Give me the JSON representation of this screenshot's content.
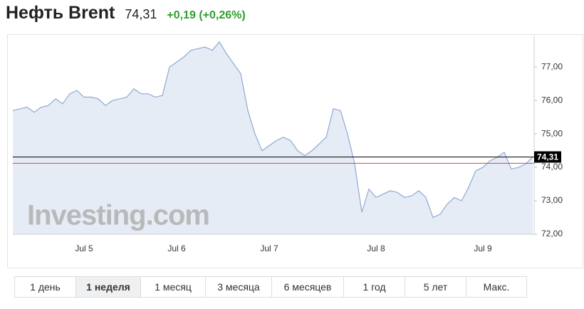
{
  "header": {
    "title": "Нефть Brent",
    "price": "74,31",
    "change": "+0,19 (+0,26%)"
  },
  "chart_data": {
    "type": "area",
    "watermark": "Investing.com",
    "categories": [
      null,
      null,
      null,
      null,
      null,
      null,
      null,
      null,
      null,
      null,
      "Jul 5",
      null,
      null,
      null,
      null,
      null,
      null,
      null,
      null,
      null,
      null,
      null,
      null,
      "Jul 6",
      null,
      null,
      null,
      null,
      null,
      null,
      null,
      null,
      null,
      null,
      null,
      null,
      "Jul 7",
      null,
      null,
      null,
      null,
      null,
      null,
      null,
      null,
      null,
      null,
      null,
      null,
      null,
      null,
      "Jul 8",
      null,
      null,
      null,
      null,
      null,
      null,
      null,
      null,
      null,
      null,
      null,
      null,
      null,
      null,
      "Jul 9",
      null,
      null,
      null,
      null,
      null,
      null,
      null
    ],
    "values": [
      75.7,
      75.75,
      75.8,
      75.65,
      75.8,
      75.85,
      76.05,
      75.9,
      76.2,
      76.3,
      76.1,
      76.1,
      76.05,
      75.85,
      76.0,
      76.05,
      76.1,
      76.35,
      76.2,
      76.2,
      76.1,
      76.15,
      77.0,
      77.15,
      77.3,
      77.5,
      77.55,
      77.6,
      77.5,
      77.75,
      77.4,
      77.1,
      76.8,
      75.7,
      75.0,
      74.5,
      74.65,
      74.8,
      74.9,
      74.8,
      74.5,
      74.35,
      74.5,
      74.7,
      74.9,
      75.75,
      75.7,
      75.0,
      74.1,
      72.66,
      73.35,
      73.1,
      73.2,
      73.3,
      73.25,
      73.1,
      73.15,
      73.3,
      73.1,
      72.5,
      72.6,
      72.9,
      73.1,
      73.0,
      73.4,
      73.9,
      74.0,
      74.2,
      74.3,
      74.45,
      73.95,
      74.0,
      74.1,
      74.31
    ],
    "color": "#8fa9d4",
    "ylim": [
      72,
      77.94
    ],
    "yticks": [
      {
        "value": 72,
        "label": "72,00"
      },
      {
        "value": 73,
        "label": "73,00"
      },
      {
        "value": 74,
        "label": "74,00"
      },
      {
        "value": 75,
        "label": "75,00"
      },
      {
        "value": 76,
        "label": "76,00"
      },
      {
        "value": 77,
        "label": "77,00"
      }
    ],
    "reference_lines": [
      {
        "value": 74.31,
        "label": "74,31",
        "color": "#000000"
      },
      {
        "value": 74.12,
        "color": "#c0504d"
      }
    ]
  },
  "periods": [
    "1 день",
    "1 неделя",
    "1 месяц",
    "3 месяца",
    "6 месяцев",
    "1 год",
    "5 лет",
    "Макс."
  ],
  "active_period": 1
}
